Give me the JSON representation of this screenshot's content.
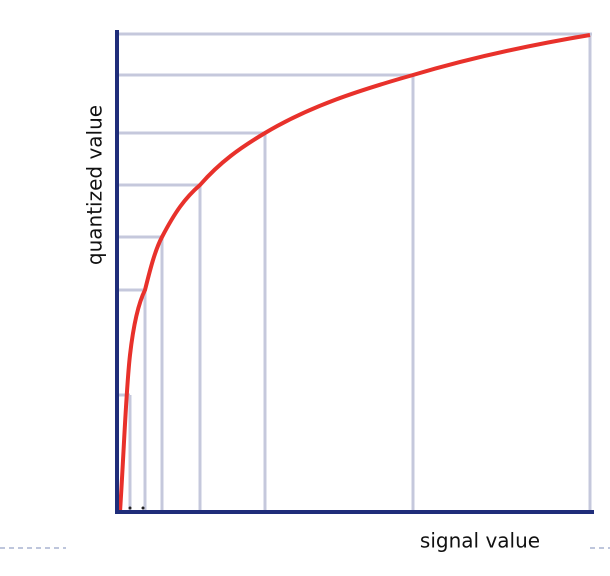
{
  "axes": {
    "y_label": "quantized value",
    "x_label": "signal value"
  }
}
